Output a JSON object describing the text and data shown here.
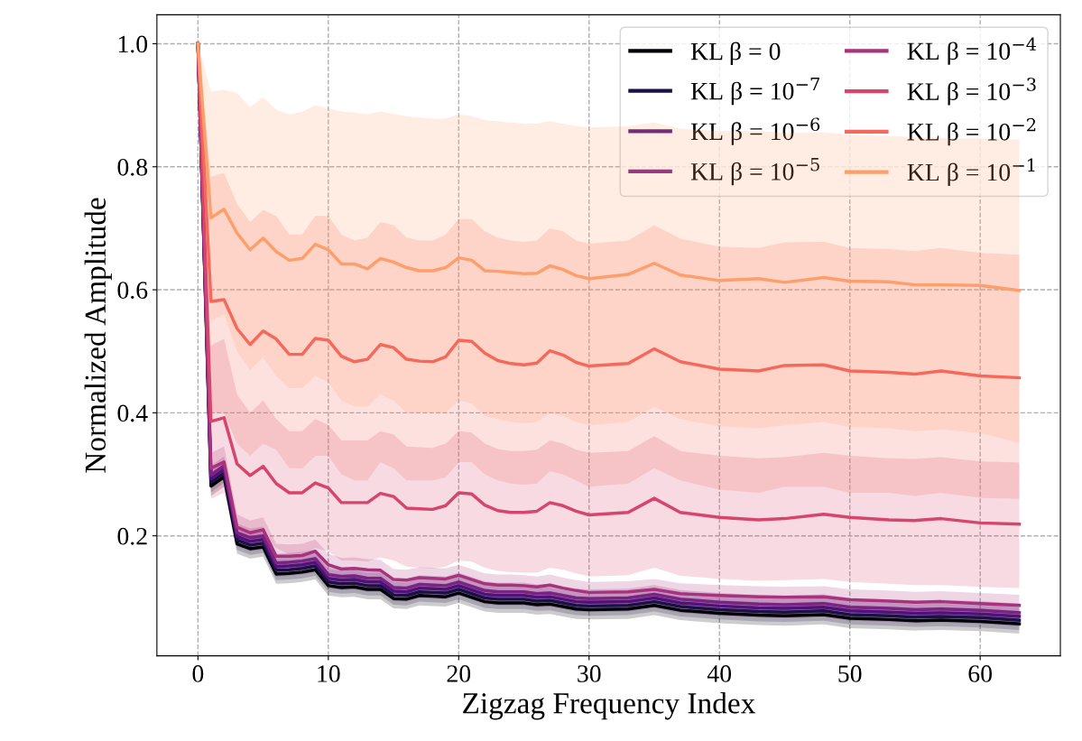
{
  "chart_data": {
    "type": "line",
    "xlabel": "Zigzag Frequency Index",
    "ylabel": "Normalized Amplitude",
    "x": [
      0,
      1,
      2,
      3,
      4,
      5,
      6,
      7,
      8,
      9,
      10,
      11,
      12,
      13,
      14,
      15,
      16,
      17,
      18,
      19,
      20,
      21,
      22,
      23,
      24,
      25,
      26,
      27,
      28,
      29,
      30,
      33,
      35,
      37,
      40,
      43,
      45,
      48,
      50,
      53,
      55,
      57,
      60,
      63
    ],
    "xlim": [
      -3.15,
      66.15
    ],
    "xticks": [
      0,
      10,
      20,
      30,
      40,
      50,
      60
    ],
    "ylim": [
      0.005,
      1.047
    ],
    "yticks": [
      0.2,
      0.4,
      0.6,
      0.8,
      {
        "value": 1.0,
        "label": "1.0"
      }
    ],
    "grid": true,
    "legend": "top right",
    "line_style": "solid",
    "marker": "none",
    "series": [
      {
        "name": "KL β = 0",
        "color": "#000004",
        "values": [
          1.0,
          0.281,
          0.296,
          0.187,
          0.179,
          0.182,
          0.138,
          0.139,
          0.141,
          0.145,
          0.119,
          0.116,
          0.117,
          0.113,
          0.113,
          0.098,
          0.097,
          0.103,
          0.102,
          0.101,
          0.107,
          0.1,
          0.093,
          0.091,
          0.091,
          0.091,
          0.088,
          0.089,
          0.085,
          0.081,
          0.08,
          0.081,
          0.087,
          0.079,
          0.074,
          0.071,
          0.07,
          0.072,
          0.066,
          0.064,
          0.062,
          0.063,
          0.061,
          0.057
        ],
        "upper": [
          1.0,
          0.296,
          0.311,
          0.202,
          0.194,
          0.197,
          0.153,
          0.154,
          0.156,
          0.16,
          0.134,
          0.131,
          0.132,
          0.128,
          0.128,
          0.113,
          0.112,
          0.118,
          0.117,
          0.116,
          0.122,
          0.115,
          0.108,
          0.106,
          0.106,
          0.106,
          0.103,
          0.104,
          0.1,
          0.096,
          0.095,
          0.096,
          0.102,
          0.094,
          0.089,
          0.086,
          0.085,
          0.087,
          0.081,
          0.079,
          0.077,
          0.078,
          0.076,
          0.072
        ],
        "lower": [
          1.0,
          0.265,
          0.28,
          0.171,
          0.163,
          0.166,
          0.122,
          0.123,
          0.125,
          0.129,
          0.103,
          0.1,
          0.101,
          0.097,
          0.097,
          0.082,
          0.081,
          0.087,
          0.086,
          0.085,
          0.091,
          0.084,
          0.077,
          0.075,
          0.075,
          0.075,
          0.072,
          0.073,
          0.069,
          0.065,
          0.064,
          0.065,
          0.071,
          0.063,
          0.058,
          0.055,
          0.054,
          0.056,
          0.05,
          0.048,
          0.046,
          0.047,
          0.045,
          0.041
        ]
      },
      {
        "name": "KL β = 10$^{−7}$",
        "color": "#1c1044",
        "values": [
          1.0,
          0.287,
          0.302,
          0.193,
          0.185,
          0.188,
          0.144,
          0.145,
          0.147,
          0.151,
          0.125,
          0.122,
          0.123,
          0.119,
          0.119,
          0.104,
          0.103,
          0.109,
          0.108,
          0.107,
          0.113,
          0.106,
          0.099,
          0.097,
          0.097,
          0.097,
          0.094,
          0.095,
          0.091,
          0.087,
          0.086,
          0.087,
          0.093,
          0.085,
          0.08,
          0.077,
          0.076,
          0.078,
          0.072,
          0.07,
          0.068,
          0.069,
          0.067,
          0.063
        ],
        "upper": [
          1.0,
          0.302,
          0.317,
          0.208,
          0.2,
          0.203,
          0.159,
          0.16,
          0.162,
          0.166,
          0.14,
          0.137,
          0.138,
          0.134,
          0.134,
          0.119,
          0.118,
          0.124,
          0.123,
          0.122,
          0.128,
          0.121,
          0.114,
          0.112,
          0.112,
          0.112,
          0.109,
          0.11,
          0.106,
          0.102,
          0.101,
          0.102,
          0.108,
          0.1,
          0.095,
          0.092,
          0.091,
          0.093,
          0.087,
          0.085,
          0.083,
          0.084,
          0.082,
          0.078
        ],
        "lower": [
          1.0,
          0.271,
          0.286,
          0.177,
          0.169,
          0.172,
          0.128,
          0.129,
          0.131,
          0.135,
          0.109,
          0.106,
          0.107,
          0.103,
          0.103,
          0.088,
          0.087,
          0.093,
          0.092,
          0.091,
          0.097,
          0.09,
          0.083,
          0.081,
          0.081,
          0.081,
          0.078,
          0.079,
          0.075,
          0.071,
          0.07,
          0.071,
          0.077,
          0.069,
          0.064,
          0.061,
          0.06,
          0.062,
          0.056,
          0.054,
          0.052,
          0.053,
          0.051,
          0.047
        ]
      },
      {
        "name": "KL β = 10$^{−6}$",
        "color": "#4f127b",
        "values": [
          1.0,
          0.293,
          0.308,
          0.199,
          0.191,
          0.194,
          0.15,
          0.151,
          0.153,
          0.157,
          0.131,
          0.128,
          0.129,
          0.125,
          0.125,
          0.11,
          0.109,
          0.115,
          0.114,
          0.113,
          0.119,
          0.112,
          0.105,
          0.103,
          0.103,
          0.103,
          0.1,
          0.101,
          0.097,
          0.093,
          0.092,
          0.093,
          0.099,
          0.091,
          0.086,
          0.083,
          0.082,
          0.084,
          0.078,
          0.076,
          0.074,
          0.075,
          0.073,
          0.069
        ],
        "upper": [
          1.0,
          0.308,
          0.323,
          0.214,
          0.206,
          0.209,
          0.165,
          0.166,
          0.168,
          0.172,
          0.146,
          0.143,
          0.144,
          0.14,
          0.14,
          0.125,
          0.124,
          0.13,
          0.129,
          0.128,
          0.134,
          0.127,
          0.12,
          0.118,
          0.118,
          0.118,
          0.115,
          0.116,
          0.112,
          0.108,
          0.107,
          0.108,
          0.114,
          0.106,
          0.101,
          0.098,
          0.097,
          0.099,
          0.093,
          0.091,
          0.089,
          0.09,
          0.088,
          0.084
        ],
        "lower": [
          1.0,
          0.277,
          0.292,
          0.183,
          0.175,
          0.178,
          0.134,
          0.135,
          0.137,
          0.141,
          0.115,
          0.112,
          0.113,
          0.109,
          0.109,
          0.094,
          0.093,
          0.099,
          0.098,
          0.097,
          0.103,
          0.096,
          0.089,
          0.087,
          0.087,
          0.087,
          0.084,
          0.085,
          0.081,
          0.077,
          0.076,
          0.077,
          0.083,
          0.075,
          0.07,
          0.067,
          0.066,
          0.068,
          0.062,
          0.06,
          0.058,
          0.059,
          0.057,
          0.053
        ]
      },
      {
        "name": "KL β = 10$^{−5}$",
        "color": "#7b2382",
        "values": [
          1.0,
          0.299,
          0.314,
          0.205,
          0.197,
          0.2,
          0.156,
          0.157,
          0.159,
          0.163,
          0.137,
          0.134,
          0.135,
          0.131,
          0.131,
          0.116,
          0.115,
          0.121,
          0.12,
          0.119,
          0.125,
          0.118,
          0.111,
          0.109,
          0.109,
          0.109,
          0.106,
          0.107,
          0.103,
          0.099,
          0.098,
          0.099,
          0.105,
          0.097,
          0.092,
          0.089,
          0.088,
          0.09,
          0.084,
          0.082,
          0.08,
          0.081,
          0.079,
          0.075
        ],
        "upper": [
          1.0,
          0.314,
          0.329,
          0.22,
          0.212,
          0.215,
          0.171,
          0.172,
          0.174,
          0.178,
          0.152,
          0.149,
          0.15,
          0.146,
          0.146,
          0.131,
          0.13,
          0.136,
          0.135,
          0.134,
          0.14,
          0.133,
          0.126,
          0.124,
          0.124,
          0.124,
          0.121,
          0.122,
          0.118,
          0.114,
          0.113,
          0.114,
          0.12,
          0.112,
          0.107,
          0.104,
          0.103,
          0.105,
          0.099,
          0.097,
          0.095,
          0.096,
          0.094,
          0.09
        ],
        "lower": [
          1.0,
          0.283,
          0.298,
          0.189,
          0.181,
          0.184,
          0.14,
          0.141,
          0.143,
          0.147,
          0.121,
          0.118,
          0.119,
          0.115,
          0.115,
          0.1,
          0.099,
          0.105,
          0.104,
          0.103,
          0.109,
          0.102,
          0.095,
          0.093,
          0.093,
          0.093,
          0.09,
          0.091,
          0.087,
          0.083,
          0.082,
          0.083,
          0.089,
          0.081,
          0.076,
          0.073,
          0.072,
          0.074,
          0.068,
          0.066,
          0.064,
          0.065,
          0.063,
          0.059
        ]
      },
      {
        "name": "KL β = 10$^{−4}$",
        "color": "#a8327d",
        "values": [
          1.0,
          0.31,
          0.32,
          0.214,
          0.205,
          0.21,
          0.167,
          0.167,
          0.168,
          0.175,
          0.153,
          0.146,
          0.147,
          0.145,
          0.144,
          0.129,
          0.128,
          0.132,
          0.131,
          0.13,
          0.136,
          0.129,
          0.122,
          0.12,
          0.12,
          0.119,
          0.117,
          0.12,
          0.115,
          0.111,
          0.108,
          0.109,
          0.113,
          0.106,
          0.103,
          0.101,
          0.1,
          0.101,
          0.096,
          0.094,
          0.092,
          0.093,
          0.09,
          0.087
        ],
        "upper": [
          1.0,
          0.335,
          0.345,
          0.235,
          0.225,
          0.23,
          0.187,
          0.186,
          0.187,
          0.194,
          0.171,
          0.164,
          0.165,
          0.162,
          0.161,
          0.146,
          0.145,
          0.149,
          0.148,
          0.147,
          0.153,
          0.146,
          0.139,
          0.137,
          0.137,
          0.136,
          0.134,
          0.137,
          0.132,
          0.128,
          0.125,
          0.126,
          0.13,
          0.123,
          0.12,
          0.118,
          0.117,
          0.118,
          0.113,
          0.111,
          0.109,
          0.11,
          0.107,
          0.104
        ],
        "lower": [
          1.0,
          0.285,
          0.295,
          0.193,
          0.185,
          0.19,
          0.147,
          0.148,
          0.149,
          0.156,
          0.135,
          0.128,
          0.129,
          0.128,
          0.127,
          0.112,
          0.111,
          0.115,
          0.114,
          0.113,
          0.119,
          0.112,
          0.105,
          0.103,
          0.103,
          0.102,
          0.1,
          0.103,
          0.098,
          0.094,
          0.091,
          0.092,
          0.096,
          0.089,
          0.086,
          0.084,
          0.083,
          0.084,
          0.079,
          0.077,
          0.075,
          0.076,
          0.073,
          0.07
        ]
      },
      {
        "name": "KL β = 10$^{−3}$",
        "color": "#d6456c",
        "values": [
          1.0,
          0.386,
          0.392,
          0.317,
          0.298,
          0.313,
          0.285,
          0.27,
          0.27,
          0.286,
          0.278,
          0.254,
          0.254,
          0.254,
          0.269,
          0.264,
          0.245,
          0.244,
          0.243,
          0.249,
          0.27,
          0.268,
          0.25,
          0.241,
          0.238,
          0.238,
          0.24,
          0.254,
          0.249,
          0.24,
          0.234,
          0.238,
          0.261,
          0.238,
          0.23,
          0.226,
          0.228,
          0.235,
          0.23,
          0.226,
          0.225,
          0.228,
          0.221,
          0.219
        ],
        "upper": [
          1.0,
          0.51,
          0.52,
          0.43,
          0.4,
          0.42,
          0.39,
          0.37,
          0.37,
          0.39,
          0.38,
          0.355,
          0.355,
          0.355,
          0.37,
          0.365,
          0.345,
          0.344,
          0.343,
          0.35,
          0.37,
          0.368,
          0.35,
          0.341,
          0.338,
          0.338,
          0.34,
          0.355,
          0.35,
          0.34,
          0.335,
          0.338,
          0.362,
          0.338,
          0.33,
          0.326,
          0.328,
          0.335,
          0.33,
          0.326,
          0.325,
          0.328,
          0.321,
          0.319
        ],
        "lower": [
          1.0,
          0.26,
          0.27,
          0.2,
          0.19,
          0.2,
          0.18,
          0.17,
          0.17,
          0.18,
          0.175,
          0.16,
          0.16,
          0.158,
          0.165,
          0.16,
          0.15,
          0.148,
          0.147,
          0.15,
          0.16,
          0.158,
          0.148,
          0.143,
          0.141,
          0.14,
          0.14,
          0.148,
          0.145,
          0.139,
          0.134,
          0.136,
          0.148,
          0.135,
          0.13,
          0.127,
          0.128,
          0.13,
          0.125,
          0.122,
          0.12,
          0.12,
          0.117,
          0.115
        ]
      },
      {
        "name": "KL β = 10$^{−2}$",
        "color": "#f4695c",
        "values": [
          1.0,
          0.581,
          0.584,
          0.537,
          0.511,
          0.533,
          0.52,
          0.495,
          0.495,
          0.521,
          0.518,
          0.492,
          0.483,
          0.487,
          0.511,
          0.506,
          0.487,
          0.484,
          0.483,
          0.491,
          0.518,
          0.516,
          0.497,
          0.485,
          0.48,
          0.478,
          0.481,
          0.501,
          0.494,
          0.482,
          0.476,
          0.48,
          0.504,
          0.483,
          0.471,
          0.468,
          0.477,
          0.478,
          0.468,
          0.466,
          0.463,
          0.468,
          0.46,
          0.457
        ],
        "upper": [
          1.0,
          0.784,
          0.79,
          0.74,
          0.71,
          0.73,
          0.72,
          0.69,
          0.69,
          0.72,
          0.72,
          0.69,
          0.68,
          0.685,
          0.71,
          0.705,
          0.685,
          0.68,
          0.68,
          0.69,
          0.715,
          0.715,
          0.695,
          0.685,
          0.68,
          0.678,
          0.68,
          0.7,
          0.695,
          0.68,
          0.675,
          0.68,
          0.705,
          0.683,
          0.67,
          0.668,
          0.677,
          0.678,
          0.668,
          0.666,
          0.663,
          0.668,
          0.66,
          0.657
        ],
        "lower": [
          1.0,
          0.4,
          0.4,
          0.35,
          0.33,
          0.35,
          0.34,
          0.31,
          0.31,
          0.33,
          0.33,
          0.3,
          0.29,
          0.29,
          0.32,
          0.31,
          0.29,
          0.29,
          0.29,
          0.295,
          0.32,
          0.32,
          0.3,
          0.29,
          0.285,
          0.283,
          0.285,
          0.305,
          0.3,
          0.29,
          0.28,
          0.285,
          0.31,
          0.29,
          0.275,
          0.27,
          0.28,
          0.28,
          0.27,
          0.27,
          0.265,
          0.27,
          0.262,
          0.26
        ]
      },
      {
        "name": "KL β = 10$^{−1}$",
        "color": "#fd9f6c",
        "values": [
          1.0,
          0.717,
          0.731,
          0.692,
          0.665,
          0.684,
          0.662,
          0.648,
          0.651,
          0.674,
          0.665,
          0.642,
          0.642,
          0.634,
          0.651,
          0.645,
          0.636,
          0.631,
          0.631,
          0.636,
          0.652,
          0.648,
          0.631,
          0.63,
          0.628,
          0.626,
          0.627,
          0.639,
          0.633,
          0.623,
          0.618,
          0.625,
          0.643,
          0.624,
          0.615,
          0.618,
          0.612,
          0.62,
          0.614,
          0.613,
          0.608,
          0.608,
          0.607,
          0.599
        ],
        "upper": [
          1.0,
          0.922,
          0.925,
          0.92,
          0.897,
          0.913,
          0.893,
          0.885,
          0.889,
          0.9,
          0.895,
          0.89,
          0.888,
          0.885,
          0.89,
          0.886,
          0.882,
          0.88,
          0.878,
          0.878,
          0.885,
          0.882,
          0.876,
          0.874,
          0.872,
          0.87,
          0.87,
          0.874,
          0.87,
          0.866,
          0.864,
          0.866,
          0.872,
          0.862,
          0.858,
          0.858,
          0.855,
          0.856,
          0.852,
          0.85,
          0.848,
          0.847,
          0.846,
          0.844
        ],
        "lower": [
          1.0,
          0.55,
          0.56,
          0.5,
          0.47,
          0.49,
          0.46,
          0.44,
          0.44,
          0.46,
          0.45,
          0.42,
          0.41,
          0.41,
          0.43,
          0.42,
          0.4,
          0.4,
          0.4,
          0.4,
          0.42,
          0.415,
          0.395,
          0.39,
          0.385,
          0.383,
          0.385,
          0.4,
          0.395,
          0.385,
          0.38,
          0.385,
          0.41,
          0.39,
          0.378,
          0.375,
          0.38,
          0.385,
          0.377,
          0.375,
          0.37,
          0.373,
          0.367,
          0.351
        ]
      }
    ]
  }
}
